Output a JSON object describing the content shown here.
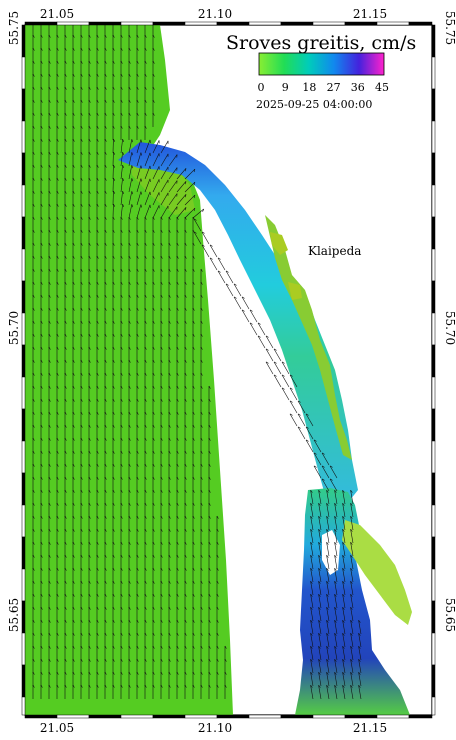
{
  "map": {
    "legend": {
      "title": "Sroves greitis, cm/s",
      "ticks": [
        "0",
        "9",
        "18",
        "27",
        "36",
        "45"
      ],
      "timestamp": "2025-09-25  04:00:00",
      "colors": [
        "#66dd33",
        "#33dd33",
        "#00dd99",
        "#00bbee",
        "#3399ff",
        "#2233dd",
        "#8822dd",
        "#ff22cc"
      ]
    },
    "place_label": "Klaipeda",
    "axes": {
      "top_lon": [
        "21.05",
        "21.10",
        "21.15"
      ],
      "bottom_lon": [
        "21.05",
        "21.10",
        "21.15"
      ],
      "left_lat": [
        "55.75",
        "55.70",
        "55.65"
      ],
      "right_lat": [
        "55.75",
        "55.70",
        "55.65"
      ]
    },
    "colors": {
      "sea": "#55cc22",
      "lagoon": "#66cc33",
      "slow_channel": "#33bbdd",
      "fast_channel": "#2244cc",
      "land": "#ffffff"
    },
    "current_direction": "northward along coast"
  }
}
